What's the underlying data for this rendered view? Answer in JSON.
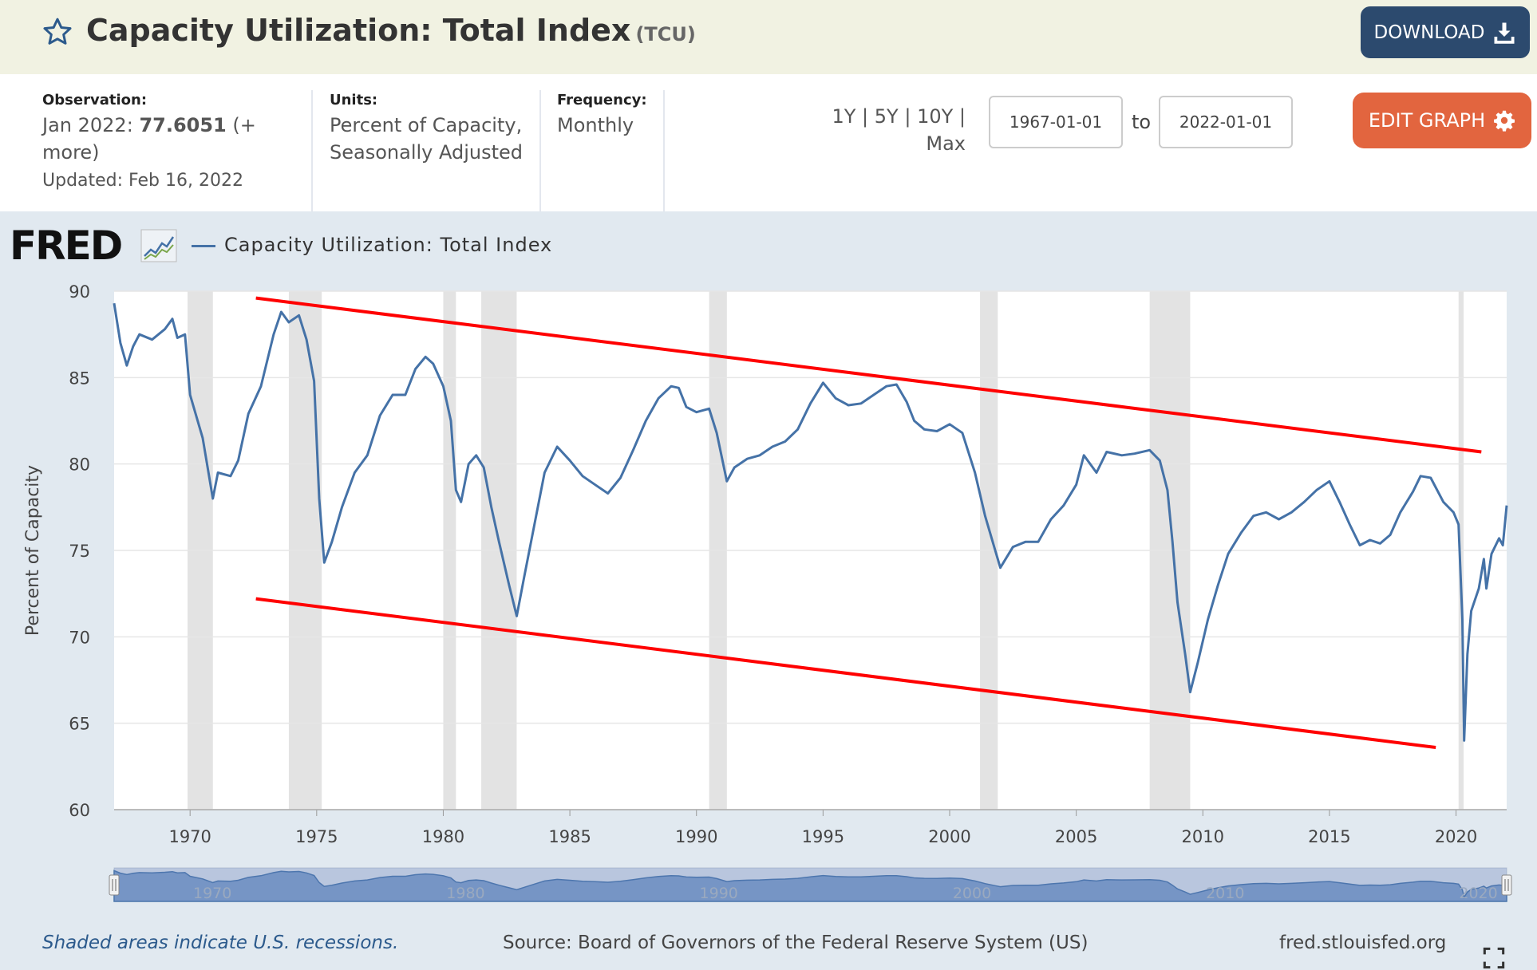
{
  "header": {
    "title": "Capacity Utilization: Total Index",
    "series_id": "(TCU)",
    "download_label": "DOWNLOAD",
    "bg_color": "#f1f2e2",
    "download_color": "#2c4a6e"
  },
  "info": {
    "observation_label": "Observation:",
    "observation_date": "Jan 2022:",
    "observation_value": "77.6051",
    "observation_more": "(+ more)",
    "updated": "Updated: Feb 16, 2022",
    "units_label": "Units:",
    "units_line1": "Percent of Capacity,",
    "units_line2": "Seasonally Adjusted",
    "frequency_label": "Frequency:",
    "frequency_value": "Monthly",
    "range_1y": "1Y",
    "range_5y": "5Y",
    "range_10y": "10Y",
    "range_max": "Max",
    "separator": "|",
    "start_date": "1967-01-01",
    "to_label": "to",
    "end_date": "2022-01-01",
    "edit_graph_label": "EDIT GRAPH",
    "edit_color": "#e2653f"
  },
  "graph": {
    "logo_text": "FRED",
    "legend_label": "Capacity Utilization: Total Index",
    "recession_note": "Shaded areas indicate U.S. recessions.",
    "source": "Source: Board of Governors of the Federal Reserve System (US)",
    "site": "fred.stlouisfed.org"
  },
  "chart_data": {
    "type": "line",
    "title": "",
    "xlabel": "",
    "ylabel": "Percent of Capacity",
    "xlim": [
      1967.0,
      2022.0
    ],
    "ylim": [
      60,
      90
    ],
    "x_ticks": [
      1970,
      1975,
      1980,
      1985,
      1990,
      1995,
      2000,
      2005,
      2010,
      2015,
      2020
    ],
    "y_ticks": [
      60,
      65,
      70,
      75,
      80,
      85,
      90
    ],
    "navigator_ticks": [
      1970,
      1980,
      1990,
      2000,
      2010,
      2020
    ],
    "grid": "horizontal",
    "series_color": "#4572a7",
    "recession_color": "#e3e3e3",
    "series": [
      {
        "name": "Capacity Utilization: Total Index",
        "points": [
          [
            1967.0,
            89.3
          ],
          [
            1967.25,
            87.0
          ],
          [
            1967.5,
            85.7
          ],
          [
            1967.75,
            86.8
          ],
          [
            1968.0,
            87.5
          ],
          [
            1968.5,
            87.2
          ],
          [
            1969.0,
            87.8
          ],
          [
            1969.3,
            88.4
          ],
          [
            1969.5,
            87.3
          ],
          [
            1969.8,
            87.5
          ],
          [
            1970.0,
            84.0
          ],
          [
            1970.5,
            81.5
          ],
          [
            1970.9,
            78.0
          ],
          [
            1971.1,
            79.5
          ],
          [
            1971.6,
            79.3
          ],
          [
            1971.9,
            80.2
          ],
          [
            1972.3,
            82.9
          ],
          [
            1972.8,
            84.5
          ],
          [
            1973.3,
            87.5
          ],
          [
            1973.6,
            88.8
          ],
          [
            1973.9,
            88.2
          ],
          [
            1974.3,
            88.6
          ],
          [
            1974.6,
            87.2
          ],
          [
            1974.9,
            84.8
          ],
          [
            1975.1,
            78.0
          ],
          [
            1975.3,
            74.3
          ],
          [
            1975.6,
            75.5
          ],
          [
            1976.0,
            77.5
          ],
          [
            1976.5,
            79.5
          ],
          [
            1977.0,
            80.5
          ],
          [
            1977.5,
            82.8
          ],
          [
            1978.0,
            84.0
          ],
          [
            1978.5,
            84.0
          ],
          [
            1978.9,
            85.5
          ],
          [
            1979.3,
            86.2
          ],
          [
            1979.6,
            85.8
          ],
          [
            1980.0,
            84.5
          ],
          [
            1980.3,
            82.5
          ],
          [
            1980.5,
            78.5
          ],
          [
            1980.7,
            77.8
          ],
          [
            1981.0,
            80.0
          ],
          [
            1981.3,
            80.5
          ],
          [
            1981.6,
            79.8
          ],
          [
            1981.9,
            77.5
          ],
          [
            1982.2,
            75.5
          ],
          [
            1982.6,
            73.0
          ],
          [
            1982.9,
            71.2
          ],
          [
            1983.2,
            73.5
          ],
          [
            1983.6,
            76.5
          ],
          [
            1984.0,
            79.5
          ],
          [
            1984.5,
            81.0
          ],
          [
            1985.0,
            80.2
          ],
          [
            1985.5,
            79.3
          ],
          [
            1986.0,
            78.8
          ],
          [
            1986.5,
            78.3
          ],
          [
            1987.0,
            79.2
          ],
          [
            1987.5,
            80.8
          ],
          [
            1988.0,
            82.5
          ],
          [
            1988.5,
            83.8
          ],
          [
            1989.0,
            84.5
          ],
          [
            1989.3,
            84.4
          ],
          [
            1989.6,
            83.3
          ],
          [
            1990.0,
            83.0
          ],
          [
            1990.5,
            83.2
          ],
          [
            1990.8,
            81.8
          ],
          [
            1991.2,
            79.0
          ],
          [
            1991.5,
            79.8
          ],
          [
            1992.0,
            80.3
          ],
          [
            1992.5,
            80.5
          ],
          [
            1993.0,
            81.0
          ],
          [
            1993.5,
            81.3
          ],
          [
            1994.0,
            82.0
          ],
          [
            1994.5,
            83.5
          ],
          [
            1995.0,
            84.7
          ],
          [
            1995.5,
            83.8
          ],
          [
            1996.0,
            83.4
          ],
          [
            1996.5,
            83.5
          ],
          [
            1997.0,
            84.0
          ],
          [
            1997.5,
            84.5
          ],
          [
            1997.9,
            84.6
          ],
          [
            1998.3,
            83.6
          ],
          [
            1998.6,
            82.5
          ],
          [
            1999.0,
            82.0
          ],
          [
            1999.5,
            81.9
          ],
          [
            2000.0,
            82.3
          ],
          [
            2000.5,
            81.8
          ],
          [
            2001.0,
            79.5
          ],
          [
            2001.4,
            77.0
          ],
          [
            2001.8,
            75.0
          ],
          [
            2002.0,
            74.0
          ],
          [
            2002.5,
            75.2
          ],
          [
            2003.0,
            75.5
          ],
          [
            2003.5,
            75.5
          ],
          [
            2004.0,
            76.8
          ],
          [
            2004.5,
            77.6
          ],
          [
            2005.0,
            78.8
          ],
          [
            2005.3,
            80.5
          ],
          [
            2005.8,
            79.5
          ],
          [
            2006.2,
            80.7
          ],
          [
            2006.8,
            80.5
          ],
          [
            2007.3,
            80.6
          ],
          [
            2007.9,
            80.8
          ],
          [
            2008.3,
            80.2
          ],
          [
            2008.6,
            78.5
          ],
          [
            2008.8,
            75.5
          ],
          [
            2009.0,
            72.0
          ],
          [
            2009.3,
            69.0
          ],
          [
            2009.5,
            66.8
          ],
          [
            2009.8,
            68.5
          ],
          [
            2010.2,
            71.0
          ],
          [
            2010.6,
            73.0
          ],
          [
            2011.0,
            74.8
          ],
          [
            2011.5,
            76.0
          ],
          [
            2012.0,
            77.0
          ],
          [
            2012.5,
            77.2
          ],
          [
            2013.0,
            76.8
          ],
          [
            2013.5,
            77.2
          ],
          [
            2014.0,
            77.8
          ],
          [
            2014.5,
            78.5
          ],
          [
            2015.0,
            79.0
          ],
          [
            2015.4,
            77.8
          ],
          [
            2015.8,
            76.5
          ],
          [
            2016.2,
            75.3
          ],
          [
            2016.6,
            75.6
          ],
          [
            2017.0,
            75.4
          ],
          [
            2017.4,
            75.9
          ],
          [
            2017.8,
            77.2
          ],
          [
            2018.3,
            78.4
          ],
          [
            2018.6,
            79.3
          ],
          [
            2019.0,
            79.2
          ],
          [
            2019.5,
            77.8
          ],
          [
            2019.9,
            77.2
          ],
          [
            2020.1,
            76.5
          ],
          [
            2020.25,
            71.0
          ],
          [
            2020.32,
            64.0
          ],
          [
            2020.45,
            69.0
          ],
          [
            2020.6,
            71.5
          ],
          [
            2020.9,
            72.8
          ],
          [
            2021.1,
            74.5
          ],
          [
            2021.2,
            72.8
          ],
          [
            2021.4,
            74.8
          ],
          [
            2021.7,
            75.7
          ],
          [
            2021.85,
            75.3
          ],
          [
            2022.0,
            77.6
          ]
        ]
      }
    ],
    "recessions": [
      [
        1969.9,
        1970.9
      ],
      [
        1973.9,
        1975.2
      ],
      [
        1980.0,
        1980.5
      ],
      [
        1981.5,
        1982.9
      ],
      [
        1990.5,
        1991.2
      ],
      [
        2001.2,
        2001.9
      ],
      [
        2007.9,
        2009.5
      ],
      [
        2020.1,
        2020.3
      ]
    ],
    "annotations": [
      {
        "type": "trend-line",
        "color": "#ff0000",
        "from": [
          1972.6,
          89.6
        ],
        "to": [
          2021.0,
          80.7
        ]
      },
      {
        "type": "trend-line",
        "color": "#ff0000",
        "from": [
          1972.6,
          72.2
        ],
        "to": [
          2019.2,
          63.6
        ]
      }
    ]
  }
}
